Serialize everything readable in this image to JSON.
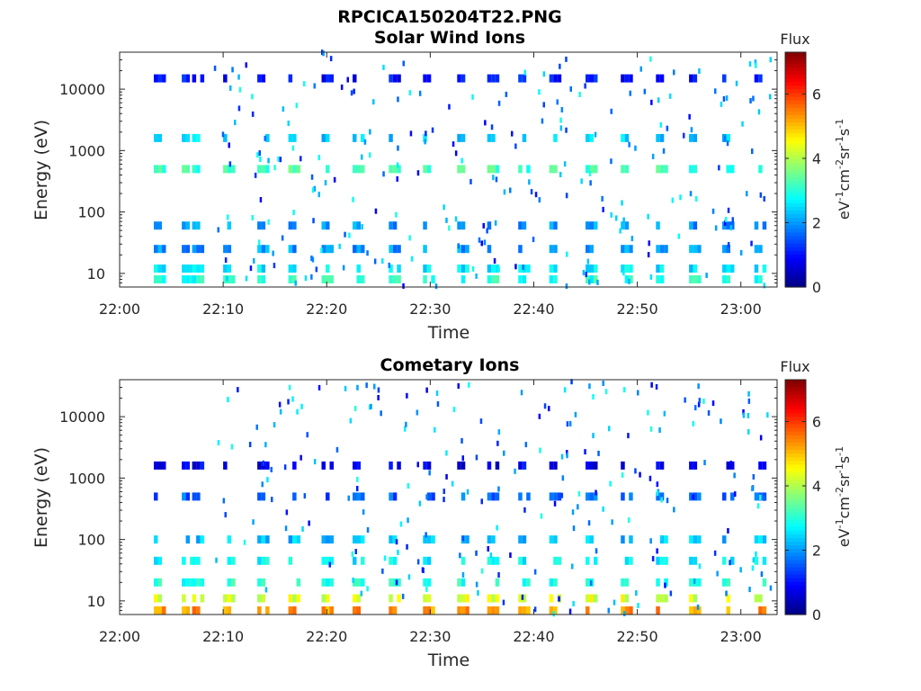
{
  "figure": {
    "filename_title": "RPCICA150204T22.PNG"
  },
  "chart_data": [
    {
      "type": "heatmap",
      "title": "Solar Wind Ions",
      "xlabel": "Time",
      "ylabel": "Energy (eV)",
      "y_scale": "log",
      "ylim": [
        6,
        40000
      ],
      "x_ticks": [
        "22:00",
        "22:10",
        "22:20",
        "22:30",
        "22:40",
        "22:50",
        "23:00"
      ],
      "y_ticks": [
        "10",
        "100",
        "1000",
        "10000"
      ],
      "colorbar": {
        "label": "Flux",
        "unit_label": "eV-1cm-2sr-1s-1",
        "range": [
          0,
          7.3
        ],
        "ticks": [
          "0",
          "2",
          "4",
          "6"
        ]
      },
      "time_range_min": [
        3,
        63
      ],
      "blocks_min": [
        3.3,
        6.0,
        7.0,
        10.0,
        13.3,
        16.3,
        19.5,
        22.5,
        26.0,
        29.3,
        32.6,
        35.5,
        38.5,
        41.5,
        45.0,
        48.4,
        51.8,
        55.0,
        58.2,
        61.3
      ],
      "bands": [
        {
          "energy_ev": 8,
          "level": 3.0
        },
        {
          "energy_ev": 12,
          "level": 2.6
        },
        {
          "energy_ev": 25,
          "level": 2.0
        },
        {
          "energy_ev": 60,
          "level": 2.0
        },
        {
          "energy_ev": 500,
          "level": 3.2
        },
        {
          "energy_ev": 1600,
          "level": 2.4
        },
        {
          "energy_ev": 15000,
          "level": 1.0
        }
      ]
    },
    {
      "type": "heatmap",
      "title": "Cometary Ions",
      "xlabel": "Time",
      "ylabel": "Energy (eV)",
      "y_scale": "log",
      "ylim": [
        6,
        40000
      ],
      "x_ticks": [
        "22:00",
        "22:10",
        "22:20",
        "22:30",
        "22:40",
        "22:50",
        "23:00"
      ],
      "y_ticks": [
        "10",
        "100",
        "1000",
        "10000"
      ],
      "colorbar": {
        "label": "Flux",
        "unit_label": "eV-1cm-2sr-1s-1",
        "range": [
          0,
          7.3
        ],
        "ticks": [
          "0",
          "2",
          "4",
          "6"
        ]
      },
      "time_range_min": [
        3,
        63
      ],
      "blocks_min": [
        3.3,
        6.0,
        7.0,
        10.0,
        13.3,
        16.3,
        19.5,
        22.5,
        26.0,
        29.3,
        32.6,
        35.5,
        38.5,
        41.5,
        45.0,
        48.4,
        51.8,
        55.0,
        58.2,
        61.3
      ],
      "bands": [
        {
          "energy_ev": 7,
          "level": 5.3
        },
        {
          "energy_ev": 11,
          "level": 4.3
        },
        {
          "energy_ev": 20,
          "level": 3.0
        },
        {
          "energy_ev": 45,
          "level": 2.7
        },
        {
          "energy_ev": 100,
          "level": 2.3
        },
        {
          "energy_ev": 500,
          "level": 1.6
        },
        {
          "energy_ev": 1600,
          "level": 0.8
        }
      ]
    }
  ]
}
